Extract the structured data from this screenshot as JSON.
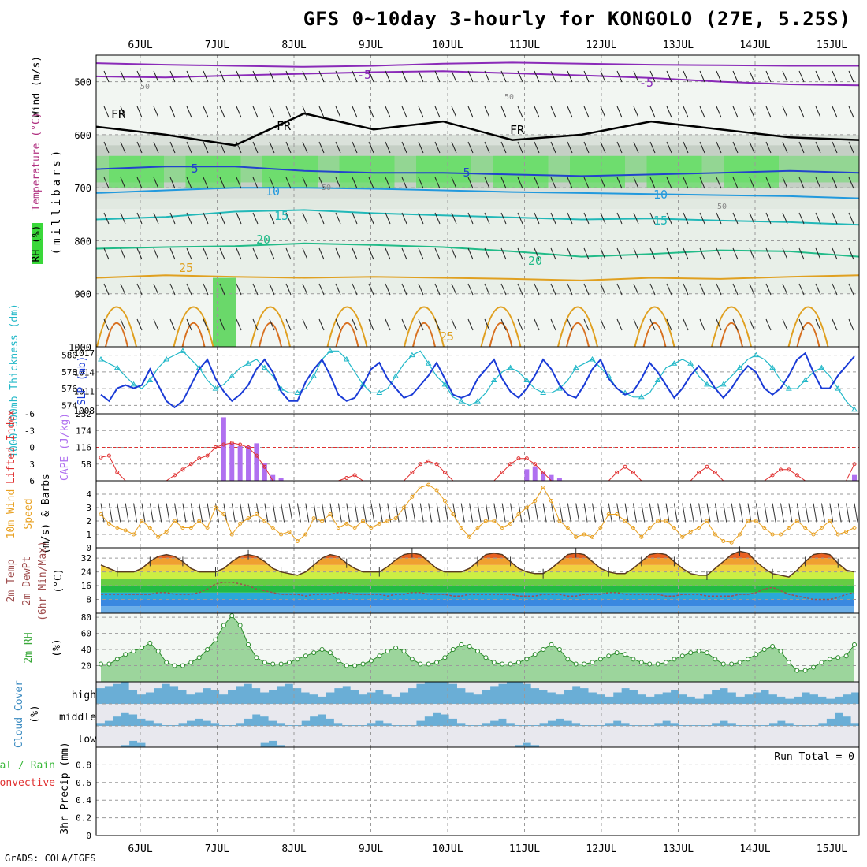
{
  "title": "GFS 0~10day 3-hourly for KONGOLO (27E, 5.25S)",
  "credit": "GrADS: COLA/IGES",
  "colors": {
    "grid": "#9a9a9a",
    "slp": "#1a3bd6",
    "thickness": "#22b8c8",
    "lifted_index": "#e03030",
    "cape": "#b070f0",
    "wind_speed": "#e8a020",
    "temp_line": "#5a3a22",
    "dewpoint": "#a05050",
    "rh_fill": "#3aa83a",
    "rh_line": "#2a8a2a",
    "cloud_fill": "#6aaed6",
    "cloud_gap": "#e8e8ee"
  },
  "chart_data": [
    {
      "type": "line",
      "panel": "upper-air cross-section",
      "ylabel": "Wind (m/s) Temperature (°C) RH (%) (millibars)",
      "ylabel_parts": [
        "Wind (m/s)",
        "Temperature (°C)",
        "RH (%)",
        "(millibars)"
      ],
      "ylim": [
        1000,
        450
      ],
      "yticks": [
        "500",
        "600",
        "700",
        "800",
        "900",
        "1000"
      ],
      "isotherm_labels": [
        "-5",
        "-5",
        "FR",
        "FR",
        "FR",
        "5",
        "5",
        "10",
        "10",
        "15",
        "15",
        "20",
        "20",
        "25",
        "25"
      ],
      "rh_contour_labels": [
        "50",
        "50",
        "50",
        "50"
      ],
      "isotherms": [
        {
          "name": "-5",
          "color": "#8a2ab8",
          "y": [
            490,
            492,
            488,
            485,
            482,
            480,
            484,
            488,
            493,
            500,
            505,
            507
          ]
        },
        {
          "name": "-5b",
          "color": "#8a2ab8",
          "y": [
            465,
            468,
            470,
            472,
            470,
            466,
            464,
            466,
            468,
            469,
            470,
            470
          ]
        },
        {
          "name": "FR",
          "color": "#000000",
          "y": [
            585,
            600,
            620,
            560,
            590,
            575,
            610,
            600,
            575,
            590,
            605,
            610
          ]
        },
        {
          "name": "5",
          "color": "#2244cc",
          "y": [
            665,
            660,
            660,
            668,
            672,
            672,
            675,
            678,
            675,
            672,
            668,
            672
          ]
        },
        {
          "name": "10",
          "color": "#2299dd",
          "y": [
            710,
            705,
            700,
            700,
            702,
            705,
            708,
            710,
            712,
            714,
            716,
            720
          ]
        },
        {
          "name": "15",
          "color": "#22b8b8",
          "y": [
            760,
            755,
            745,
            742,
            748,
            752,
            756,
            760,
            758,
            762,
            765,
            770
          ]
        },
        {
          "name": "20",
          "color": "#22bb88",
          "y": [
            815,
            812,
            810,
            805,
            808,
            812,
            820,
            830,
            825,
            818,
            820,
            830
          ]
        },
        {
          "name": "25",
          "color": "#e0a020",
          "y": [
            870,
            865,
            868,
            870,
            868,
            870,
            872,
            875,
            870,
            872,
            868,
            865
          ]
        }
      ]
    },
    {
      "type": "line",
      "panel": "SLP and 1000-500mb thickness",
      "ylabel_left": "1000-500mb Thickness (dm)",
      "ylabel_right": "SLP (mb)",
      "thickness_ticks": [
        "574",
        "576",
        "578",
        "580"
      ],
      "slp_ticks": [
        "1008",
        "1011",
        "1014",
        "1017"
      ],
      "thickness_ylim": [
        573,
        581
      ],
      "slp_ylim": [
        1007.5,
        1018
      ],
      "slp": [
        1010.5,
        1009.5,
        1011.5,
        1012.0,
        1011.5,
        1012.0,
        1014.5,
        1012.0,
        1009.5,
        1008.5,
        1009.5,
        1012.0,
        1014.5,
        1016.0,
        1013.0,
        1011.0,
        1009.5,
        1010.5,
        1012.0,
        1014.5,
        1016.0,
        1014.0,
        1011.0,
        1009.5,
        1009.5,
        1012.5,
        1014.5,
        1016.0,
        1013.5,
        1010.5,
        1009.5,
        1010.0,
        1012.0,
        1014.5,
        1015.5,
        1013.0,
        1011.5,
        1010.0,
        1010.5,
        1012.0,
        1013.5,
        1015.5,
        1013.0,
        1010.5,
        1010.0,
        1010.5,
        1013.0,
        1014.5,
        1016.0,
        1013.0,
        1011.0,
        1010.0,
        1011.5,
        1013.5,
        1016.0,
        1014.5,
        1012.0,
        1010.5,
        1010.0,
        1012.0,
        1014.5,
        1016.0,
        1013.0,
        1011.5,
        1010.5,
        1011.0,
        1013.0,
        1015.5,
        1014.0,
        1012.0,
        1010.0,
        1011.5,
        1013.5,
        1015.0,
        1013.5,
        1011.5,
        1010.0,
        1011.5,
        1013.5,
        1015.0,
        1014.0,
        1011.5,
        1010.5,
        1011.5,
        1013.5,
        1016.0,
        1017.0,
        1014.0,
        1011.5,
        1011.5,
        1013.5,
        1015.0,
        1016.5
      ],
      "thickness": [
        579.5,
        579.0,
        578.5,
        577.5,
        576.5,
        576.0,
        577.0,
        578.5,
        579.5,
        580.0,
        580.5,
        579.5,
        578.5,
        577.0,
        576.0,
        576.5,
        577.5,
        578.5,
        579.0,
        579.5,
        578.5,
        577.5,
        576.0,
        575.5,
        575.5,
        576.0,
        577.5,
        579.5,
        580.5,
        580.5,
        579.5,
        578.0,
        576.5,
        575.5,
        575.5,
        576.0,
        577.5,
        579.0,
        580.0,
        580.5,
        579.0,
        577.5,
        576.5,
        575.0,
        574.5,
        574.0,
        574.5,
        575.5,
        577.0,
        578.0,
        578.5,
        578.0,
        577.0,
        576.0,
        575.5,
        575.5,
        576.0,
        577.0,
        578.5,
        579.0,
        579.5,
        578.5,
        577.5,
        576.0,
        575.5,
        575.0,
        575.0,
        575.5,
        577.0,
        578.5,
        579.0,
        579.5,
        579.0,
        577.5,
        576.5,
        576.0,
        576.5,
        577.5,
        578.5,
        579.5,
        580.0,
        579.5,
        578.5,
        577.0,
        576.0,
        576.0,
        577.0,
        578.0,
        578.5,
        577.5,
        576.0,
        574.5,
        573.5
      ]
    },
    {
      "type": "bar",
      "panel": "Lifted Index and CAPE",
      "ylabel_left": "Lifted Index",
      "ylabel_right": "CAPE (J/kg)",
      "li_ticks": [
        "-6",
        "-3",
        "0",
        "3",
        "6"
      ],
      "cape_ticks": [
        "58",
        "116",
        "174",
        "232"
      ],
      "li_ylim": [
        6,
        -6
      ],
      "cape_ylim": [
        0,
        232
      ],
      "lifted_index": [
        1.8,
        1.5,
        4.5,
        6.0,
        6.0,
        6.0,
        6.0,
        6.0,
        6.0,
        5.0,
        4.0,
        3.0,
        2.0,
        1.5,
        0.0,
        -0.5,
        -0.8,
        -0.5,
        0.0,
        1.5,
        3.5,
        6.0,
        6.0,
        6.0,
        6.0,
        6.0,
        6.0,
        6.0,
        6.0,
        6.0,
        5.5,
        5.0,
        6.0,
        6.0,
        6.0,
        6.0,
        6.0,
        6.0,
        4.5,
        3.0,
        2.5,
        3.0,
        4.5,
        6.0,
        6.0,
        6.0,
        6.0,
        6.0,
        6.0,
        4.5,
        3.0,
        2.0,
        2.0,
        3.0,
        4.5,
        6.0,
        6.0,
        6.0,
        6.0,
        6.0,
        6.0,
        6.0,
        6.0,
        4.5,
        3.5,
        4.5,
        6.0,
        6.0,
        6.0,
        6.0,
        6.0,
        6.0,
        6.0,
        4.5,
        3.5,
        4.5,
        6.0,
        6.0,
        6.0,
        6.0,
        6.0,
        6.0,
        5.0,
        4.0,
        4.0,
        5.0,
        6.0,
        6.0,
        6.0,
        6.0,
        6.0,
        6.0,
        3.0
      ],
      "cape": [
        0,
        0,
        0,
        0,
        0,
        0,
        0,
        0,
        0,
        0,
        0,
        0,
        0,
        0,
        0,
        220,
        130,
        120,
        120,
        130,
        60,
        20,
        10,
        0,
        0,
        0,
        0,
        0,
        0,
        0,
        0,
        0,
        0,
        0,
        0,
        0,
        0,
        0,
        0,
        0,
        0,
        0,
        0,
        0,
        0,
        0,
        0,
        0,
        0,
        0,
        0,
        0,
        40,
        50,
        30,
        20,
        10,
        0,
        0,
        0,
        0,
        0,
        0,
        0,
        0,
        0,
        0,
        0,
        0,
        0,
        0,
        0,
        0,
        0,
        0,
        0,
        0,
        0,
        0,
        0,
        0,
        0,
        0,
        0,
        0,
        0,
        0,
        0,
        0,
        0,
        0,
        0,
        20
      ]
    },
    {
      "type": "line",
      "panel": "10m wind",
      "ylabel": "10m Wind Speed (m/s) & Barbs",
      "ylabel_parts": [
        "10m Wind",
        "Speed",
        "(m/s) & Barbs"
      ],
      "yticks": [
        "0",
        "1",
        "2",
        "3",
        "4"
      ],
      "ylim": [
        0,
        5
      ],
      "speed": [
        2.5,
        1.8,
        1.5,
        1.3,
        1.0,
        2.0,
        1.5,
        0.8,
        1.2,
        2.0,
        1.5,
        1.5,
        2.0,
        1.5,
        3.0,
        2.5,
        1.0,
        1.8,
        2.2,
        2.5,
        2.0,
        1.5,
        1.0,
        1.2,
        0.5,
        1.0,
        2.2,
        2.0,
        2.5,
        1.5,
        1.8,
        1.5,
        2.0,
        1.5,
        1.8,
        2.0,
        2.2,
        3.0,
        3.8,
        4.5,
        4.7,
        4.3,
        3.5,
        2.5,
        1.5,
        0.8,
        1.5,
        2.0,
        2.0,
        1.5,
        1.8,
        2.5,
        3.0,
        3.5,
        4.5,
        3.5,
        2.0,
        1.5,
        0.8,
        1.0,
        0.8,
        1.5,
        2.5,
        2.5,
        2.0,
        1.5,
        0.8,
        1.5,
        2.0,
        2.0,
        1.5,
        0.8,
        1.2,
        1.5,
        2.0,
        1.0,
        0.5,
        0.4,
        1.0,
        2.0,
        2.0,
        1.5,
        1.0,
        1.0,
        1.5,
        2.0,
        1.5,
        1.0,
        1.5,
        2.0,
        1.0,
        1.2,
        1.5
      ]
    },
    {
      "type": "area",
      "panel": "2m temperature and dew point",
      "ylabel": "2m Temp 2m DewPt (6hr Min/Max) (°C)",
      "ylabel_parts": [
        "2m Temp",
        "2m DewPt",
        "(6hr Min/Max)",
        "(°C)"
      ],
      "yticks": [
        "8",
        "16",
        "24",
        "32"
      ],
      "ylim": [
        0,
        38
      ],
      "temp": [
        28,
        26,
        24,
        24,
        24,
        26,
        30,
        33,
        34,
        33,
        30,
        26,
        24,
        24,
        24,
        26,
        30,
        33,
        34,
        33,
        30,
        26,
        24,
        23,
        22,
        24,
        28,
        32,
        34,
        33,
        29,
        26,
        24,
        24,
        24,
        27,
        31,
        34,
        35,
        34,
        30,
        26,
        24,
        24,
        24,
        26,
        30,
        34,
        35,
        34,
        30,
        26,
        24,
        23,
        23,
        26,
        30,
        34,
        35,
        34,
        30,
        26,
        24,
        23,
        23,
        26,
        30,
        34,
        35,
        34,
        30,
        26,
        23,
        22,
        22,
        26,
        30,
        34,
        36,
        35,
        30,
        26,
        23,
        22,
        21,
        25,
        30,
        34,
        35,
        34,
        29,
        25,
        24
      ],
      "dewpoint": [
        11,
        11,
        11,
        11,
        11,
        11,
        11,
        12,
        12,
        11,
        11,
        11,
        12,
        14,
        17,
        18,
        18,
        17,
        16,
        14,
        13,
        12,
        11,
        11,
        11,
        10,
        11,
        11,
        11,
        12,
        12,
        11,
        11,
        11,
        11,
        10,
        11,
        11,
        12,
        12,
        11,
        11,
        11,
        10,
        10,
        11,
        11,
        11,
        11,
        11,
        11,
        10,
        10,
        10,
        11,
        11,
        11,
        10,
        10,
        11,
        11,
        11,
        12,
        12,
        11,
        11,
        11,
        11,
        11,
        10,
        10,
        11,
        11,
        11,
        10,
        10,
        10,
        10,
        11,
        11,
        12,
        14,
        15,
        13,
        11,
        10,
        9,
        8,
        8,
        8,
        9,
        11,
        12
      ]
    },
    {
      "type": "area",
      "panel": "2m relative humidity",
      "ylabel": "2m RH (%)",
      "ylabel_parts": [
        "2m RH",
        "(%)"
      ],
      "yticks": [
        "20",
        "40",
        "60",
        "80"
      ],
      "ylim": [
        0,
        85
      ],
      "rh": [
        22,
        22,
        28,
        34,
        38,
        42,
        48,
        38,
        24,
        20,
        20,
        24,
        30,
        40,
        52,
        70,
        82,
        70,
        46,
        30,
        24,
        22,
        22,
        24,
        28,
        32,
        36,
        40,
        36,
        26,
        20,
        20,
        22,
        26,
        32,
        38,
        42,
        38,
        28,
        22,
        22,
        24,
        30,
        40,
        46,
        44,
        38,
        30,
        24,
        22,
        22,
        24,
        28,
        34,
        40,
        46,
        40,
        28,
        22,
        22,
        24,
        28,
        32,
        36,
        34,
        28,
        24,
        22,
        22,
        24,
        28,
        32,
        36,
        38,
        36,
        28,
        22,
        22,
        24,
        28,
        34,
        40,
        44,
        38,
        24,
        14,
        14,
        18,
        24,
        28,
        30,
        32,
        46
      ]
    },
    {
      "type": "area",
      "panel": "cloud cover",
      "ylabel": "Cloud Cover (%)",
      "layers": [
        "high",
        "middle",
        "low"
      ],
      "high": [
        70,
        80,
        90,
        100,
        60,
        40,
        50,
        70,
        90,
        80,
        60,
        40,
        50,
        70,
        60,
        40,
        60,
        80,
        90,
        70,
        50,
        60,
        80,
        90,
        70,
        50,
        40,
        30,
        50,
        70,
        80,
        60,
        40,
        50,
        60,
        40,
        30,
        50,
        70,
        90,
        100,
        100,
        100,
        90,
        70,
        50,
        40,
        60,
        80,
        90,
        100,
        100,
        90,
        70,
        60,
        50,
        40,
        60,
        80,
        70,
        50,
        40,
        30,
        50,
        70,
        60,
        40,
        30,
        40,
        50,
        60,
        40,
        30,
        20,
        40,
        60,
        70,
        50,
        30,
        40,
        50,
        60,
        40,
        30,
        20,
        30,
        50,
        40,
        30,
        20,
        30,
        40,
        50
      ],
      "middle": [
        10,
        20,
        40,
        60,
        50,
        30,
        20,
        10,
        0,
        0,
        10,
        20,
        30,
        20,
        10,
        0,
        0,
        10,
        30,
        50,
        40,
        20,
        10,
        0,
        0,
        20,
        40,
        50,
        30,
        10,
        0,
        0,
        0,
        10,
        20,
        10,
        0,
        0,
        0,
        20,
        40,
        60,
        50,
        30,
        10,
        0,
        0,
        10,
        20,
        30,
        10,
        0,
        0,
        0,
        10,
        20,
        30,
        20,
        10,
        0,
        0,
        0,
        10,
        20,
        10,
        0,
        0,
        0,
        10,
        20,
        10,
        0,
        0,
        0,
        0,
        10,
        20,
        10,
        0,
        0,
        0,
        0,
        10,
        20,
        10,
        0,
        0,
        0,
        10,
        30,
        60,
        40,
        10
      ],
      "low": [
        0,
        0,
        0,
        10,
        30,
        20,
        0,
        0,
        0,
        0,
        0,
        0,
        0,
        0,
        0,
        0,
        0,
        0,
        0,
        0,
        20,
        30,
        10,
        0,
        0,
        0,
        0,
        0,
        0,
        0,
        0,
        0,
        0,
        0,
        0,
        0,
        0,
        0,
        0,
        0,
        0,
        0,
        0,
        0,
        0,
        0,
        0,
        0,
        0,
        0,
        0,
        10,
        20,
        10,
        0,
        0,
        0,
        0,
        0,
        0,
        0,
        0,
        0,
        0,
        0,
        0,
        0,
        0,
        0,
        0,
        0,
        0,
        0,
        0,
        0,
        0,
        0,
        0,
        0,
        0,
        0,
        0,
        0,
        0,
        0,
        0,
        0,
        0,
        0,
        0,
        0,
        0,
        0
      ]
    },
    {
      "type": "bar",
      "panel": "3hr precipitation",
      "ylabel": "3hr Precip (mm)",
      "series_labels": [
        "Total / Rain",
        "Convective"
      ],
      "yticks": [
        "0",
        "0.2",
        "0.4",
        "0.6",
        "0.8"
      ],
      "ylim": [
        0,
        1
      ],
      "run_total_label": "Run Total = 0",
      "values": []
    }
  ],
  "x_axis": {
    "date_labels": [
      "6JUL",
      "7JUL",
      "8JUL",
      "9JUL",
      "10JUL",
      "11JUL",
      "12JUL",
      "13JUL",
      "14JUL",
      "15JUL"
    ]
  }
}
